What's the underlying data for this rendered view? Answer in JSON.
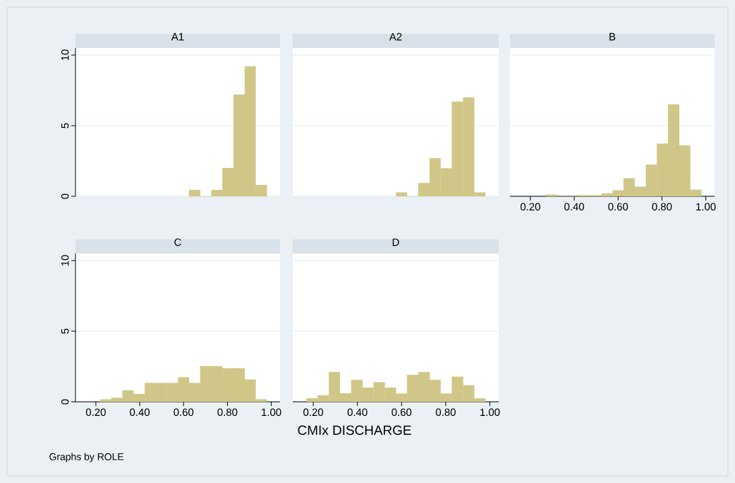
{
  "chart_data": [
    {
      "type": "histogram",
      "title": "A1",
      "bins": [
        0.625,
        0.676,
        0.727,
        0.777,
        0.828,
        0.879,
        0.929,
        0.98
      ],
      "values": [
        0.45,
        0,
        0.45,
        2.0,
        7.2,
        9.2,
        0.8
      ],
      "color": "#d0c688",
      "xlim": [
        0.107,
        1.04
      ],
      "ylim": [
        0,
        10.5
      ],
      "yticks": [
        0,
        5,
        10
      ],
      "grid": "y",
      "tick_labels": "y"
    },
    {
      "type": "histogram",
      "title": "A2",
      "bins": [
        0.575,
        0.625,
        0.676,
        0.727,
        0.777,
        0.828,
        0.879,
        0.929,
        0.98
      ],
      "values": [
        0.27,
        0,
        0.94,
        2.7,
        1.98,
        6.7,
        7.0,
        0.27
      ],
      "color": "#d0c688",
      "xlim": [
        0.107,
        1.04
      ],
      "ylim": [
        0,
        10.5
      ],
      "yticks": [
        0,
        5,
        10
      ],
      "grid": "y",
      "tick_labels": false
    },
    {
      "type": "histogram",
      "title": "B",
      "bins": [
        0.271,
        0.321,
        0.372,
        0.423,
        0.473,
        0.524,
        0.575,
        0.625,
        0.676,
        0.727,
        0.777,
        0.828,
        0.879,
        0.929,
        0.98
      ],
      "values": [
        0.12,
        0,
        0,
        0.08,
        0.08,
        0.2,
        0.42,
        1.27,
        0.68,
        2.24,
        3.73,
        6.5,
        3.6,
        0.46
      ],
      "color": "#d0c688",
      "xlim": [
        0.107,
        1.04
      ],
      "ylim": [
        0,
        10.5
      ],
      "xticks": [
        {
          "value": 0.2,
          "label": "0.20"
        },
        {
          "value": 0.4,
          "label": "0.40"
        },
        {
          "value": 0.6,
          "label": "0.60"
        },
        {
          "value": 0.8,
          "label": "0.80"
        },
        {
          "value": 1.0,
          "label": "1.00"
        }
      ],
      "yticks": [
        0,
        5,
        10
      ],
      "grid": "y",
      "tick_labels": "x"
    },
    {
      "type": "histogram",
      "title": "C",
      "bins": [
        0.22,
        0.271,
        0.321,
        0.372,
        0.423,
        0.473,
        0.524,
        0.575,
        0.625,
        0.676,
        0.727,
        0.777,
        0.828,
        0.879,
        0.929,
        0.98
      ],
      "values": [
        0.17,
        0.28,
        0.8,
        0.55,
        1.33,
        1.33,
        1.33,
        1.73,
        1.33,
        2.52,
        2.52,
        2.37,
        2.37,
        1.57,
        0.17
      ],
      "color": "#d0c688",
      "xlim": [
        0.107,
        1.04
      ],
      "ylim": [
        0,
        10.5
      ],
      "xticks": [
        {
          "value": 0.2,
          "label": "0.20"
        },
        {
          "value": 0.4,
          "label": "0.40"
        },
        {
          "value": 0.6,
          "label": "0.60"
        },
        {
          "value": 0.8,
          "label": "0.80"
        },
        {
          "value": 1.0,
          "label": "1.00"
        }
      ],
      "yticks": [
        0,
        5,
        10
      ],
      "grid": "y",
      "annotations": [
        "Graphs by ROLE"
      ]
    },
    {
      "type": "histogram",
      "title": "D",
      "xlabel": "CMIx DISCHARGE",
      "bins": [
        0.169,
        0.22,
        0.271,
        0.321,
        0.372,
        0.423,
        0.473,
        0.524,
        0.575,
        0.625,
        0.676,
        0.727,
        0.777,
        0.828,
        0.879,
        0.929,
        0.98
      ],
      "values": [
        0.25,
        0.46,
        2.1,
        0.6,
        1.55,
        1.0,
        1.38,
        1.0,
        0.58,
        1.9,
        2.1,
        1.55,
        0.58,
        1.77,
        1.17,
        0.24
      ],
      "color": "#d0c688",
      "xlim": [
        0.107,
        1.04
      ],
      "ylim": [
        0,
        10.5
      ],
      "xticks": [
        {
          "value": 0.2,
          "label": "0.20"
        },
        {
          "value": 0.4,
          "label": "0.40"
        },
        {
          "value": 0.6,
          "label": "0.60"
        },
        {
          "value": 0.8,
          "label": "0.80"
        },
        {
          "value": 1.0,
          "label": "1.00"
        }
      ],
      "yticks": [
        0,
        5,
        10
      ],
      "grid": "y",
      "tick_labels": "x"
    }
  ]
}
